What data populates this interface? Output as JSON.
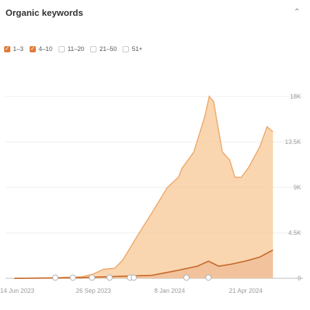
{
  "panel": {
    "title": "Organic keywords",
    "collapse_icon": "chevron-up-icon"
  },
  "filters": [
    {
      "label": "1–3",
      "checked": true
    },
    {
      "label": "4–10",
      "checked": true
    },
    {
      "label": "11–20",
      "checked": false
    },
    {
      "label": "21–50",
      "checked": false
    },
    {
      "label": "51+",
      "checked": false
    }
  ],
  "colors": {
    "area_4_10": "#f8cfa2",
    "line_4_10": "#eeaa6c",
    "area_1_3": "#efc09a",
    "line_1_3": "#c86a2d",
    "grid": "#ececec",
    "checkbox": "#e07b39"
  },
  "chart_data": {
    "type": "area",
    "x_range": [
      "2023-05-29",
      "2024-06-10"
    ],
    "xticks": [
      {
        "label": "14 Jun 2023",
        "date": "2023-06-14"
      },
      {
        "label": "26 Sep 2023",
        "date": "2023-09-26"
      },
      {
        "label": "8 Jan 2024",
        "date": "2024-01-08"
      },
      {
        "label": "21 Apr 2024",
        "date": "2024-04-21"
      }
    ],
    "ylim": [
      0,
      18000
    ],
    "yticks": [
      {
        "label": "0",
        "value": 0
      },
      {
        "label": "4.5K",
        "value": 4500
      },
      {
        "label": "9K",
        "value": 9000
      },
      {
        "label": "13.5K",
        "value": 13500
      },
      {
        "label": "18K",
        "value": 18000
      }
    ],
    "series": [
      {
        "name": "4–10",
        "points": [
          [
            "2023-06-10",
            0
          ],
          [
            "2023-08-01",
            50
          ],
          [
            "2023-09-10",
            150
          ],
          [
            "2023-09-25",
            400
          ],
          [
            "2023-10-10",
            900
          ],
          [
            "2023-10-25",
            1000
          ],
          [
            "2023-11-05",
            1800
          ],
          [
            "2023-11-25",
            4200
          ],
          [
            "2023-12-15",
            6500
          ],
          [
            "2024-01-05",
            9000
          ],
          [
            "2024-01-20",
            10000
          ],
          [
            "2024-01-25",
            10900
          ],
          [
            "2024-02-10",
            12500
          ],
          [
            "2024-02-25",
            16000
          ],
          [
            "2024-03-02",
            18000
          ],
          [
            "2024-03-08",
            17500
          ],
          [
            "2024-03-20",
            12500
          ],
          [
            "2024-03-30",
            11700
          ],
          [
            "2024-04-06",
            10000
          ],
          [
            "2024-04-15",
            10000
          ],
          [
            "2024-04-25",
            11000
          ],
          [
            "2024-05-10",
            13000
          ],
          [
            "2024-05-20",
            15000
          ],
          [
            "2024-05-28",
            14500
          ]
        ]
      },
      {
        "name": "1–3",
        "points": [
          [
            "2023-06-10",
            0
          ],
          [
            "2023-09-01",
            50
          ],
          [
            "2023-11-01",
            200
          ],
          [
            "2023-12-15",
            300
          ],
          [
            "2024-01-20",
            800
          ],
          [
            "2024-02-15",
            1200
          ],
          [
            "2024-03-01",
            1700
          ],
          [
            "2024-03-15",
            1200
          ],
          [
            "2024-04-01",
            1400
          ],
          [
            "2024-04-20",
            1700
          ],
          [
            "2024-05-10",
            2100
          ],
          [
            "2024-05-28",
            2800
          ]
        ]
      }
    ],
    "annotation_dates": [
      "2023-08-05",
      "2023-08-29",
      "2023-09-24",
      "2023-10-18",
      "2023-11-15",
      "2023-11-20",
      "2024-01-31",
      "2024-03-01"
    ]
  }
}
